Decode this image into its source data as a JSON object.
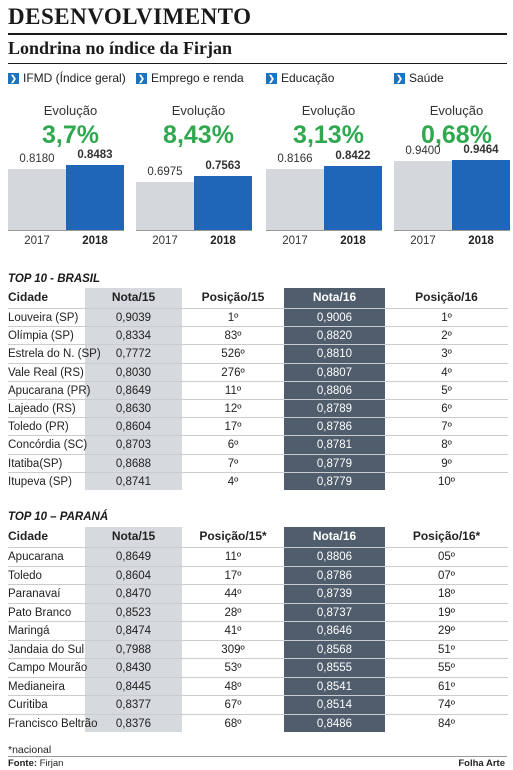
{
  "header": {
    "title": "DESENVOLVIMENTO",
    "subtitle": "Londrina no índice da Firjan"
  },
  "indicators": [
    {
      "label": "IFMD (Índice geral)",
      "evolution_label": "Evolução",
      "evolution": "3,7%",
      "v2017": "0.8180",
      "v2018": "0.8483",
      "y1": "2017",
      "y2": "2018"
    },
    {
      "label": "Emprego e renda",
      "evolution_label": "Evolução",
      "evolution": "8,43%",
      "v2017": "0.6975",
      "v2018": "0.7563",
      "y1": "2017",
      "y2": "2018"
    },
    {
      "label": "Educação",
      "evolution_label": "Evolução",
      "evolution": "3,13%",
      "v2017": "0.8166",
      "v2018": "0.8422",
      "y1": "2017",
      "y2": "2018"
    },
    {
      "label": "Saúde",
      "evolution_label": "Evolução",
      "evolution": "0,68%",
      "v2017": "0.9400",
      "v2018": "0.9464",
      "y1": "2017",
      "y2": "2018"
    }
  ],
  "colors": {
    "accent_green": "#2fa84f",
    "bar_2018": "#1f65b8",
    "bar_2017": "#d4d7db",
    "highlight_column": "#4f5d6c"
  },
  "top10_brasil": {
    "title": "TOP 10 - BRASIL",
    "headers": [
      "Cidade",
      "Nota/15",
      "Posição/15",
      "Nota/16",
      "Posição/16"
    ],
    "rows": [
      [
        "Louveira (SP)",
        "0,9039",
        "1º",
        "0,9006",
        "1º"
      ],
      [
        "Olímpia (SP)",
        "0,8334",
        "83º",
        "0,8820",
        "2º"
      ],
      [
        "Estrela do N. (SP)",
        "0,7772",
        "526º",
        "0,8810",
        "3º"
      ],
      [
        "Vale Real (RS)",
        "0,8030",
        "276º",
        "0,8807",
        "4º"
      ],
      [
        "Apucarana (PR)",
        "0,8649",
        "11º",
        "0,8806",
        "5º"
      ],
      [
        "Lajeado (RS)",
        "0,8630",
        "12º",
        "0,8789",
        "6º"
      ],
      [
        "Toledo (PR)",
        "0,8604",
        "17º",
        "0,8786",
        "7º"
      ],
      [
        "Concórdia (SC)",
        "0,8703",
        "6º",
        "0,8781",
        "8º"
      ],
      [
        "Itatiba(SP)",
        "0,8688",
        "7º",
        "0,8779",
        "9º"
      ],
      [
        "Itupeva (SP)",
        "0,8741",
        "4º",
        "0,8779",
        "10º"
      ]
    ]
  },
  "top10_parana": {
    "title": "TOP 10 – PARANÁ",
    "headers": [
      "Cidade",
      "Nota/15",
      "Posição/15*",
      "Nota/16",
      "Posição/16*"
    ],
    "rows": [
      [
        "Apucarana",
        "0,8649",
        "11º",
        "0,8806",
        "05º"
      ],
      [
        "Toledo",
        "0,8604",
        "17º",
        "0,8786",
        "07º"
      ],
      [
        "Paranavaí",
        "0,8470",
        "44º",
        "0,8739",
        "18º"
      ],
      [
        "Pato Branco",
        "0,8523",
        "28º",
        "0,8737",
        "19º"
      ],
      [
        "Maringá",
        "0,8474",
        "41º",
        "0,8646",
        "29º"
      ],
      [
        "Jandaia do Sul",
        "0,7988",
        "309º",
        "0,8568",
        "51º"
      ],
      [
        "Campo Mourão",
        "0,8430",
        "53º",
        "0,8555",
        "55º"
      ],
      [
        "Medianeira",
        "0,8445",
        "48º",
        "0,8541",
        "61º"
      ],
      [
        "Curitiba",
        "0,8377",
        "67º",
        "0,8514",
        "74º"
      ],
      [
        "Francisco Beltrão",
        "0,8376",
        "68º",
        "0,8486",
        "84º"
      ]
    ]
  },
  "footer": {
    "note": "*nacional",
    "source_label": "Fonte:",
    "source": "Firjan",
    "credit": "Folha Arte"
  }
}
